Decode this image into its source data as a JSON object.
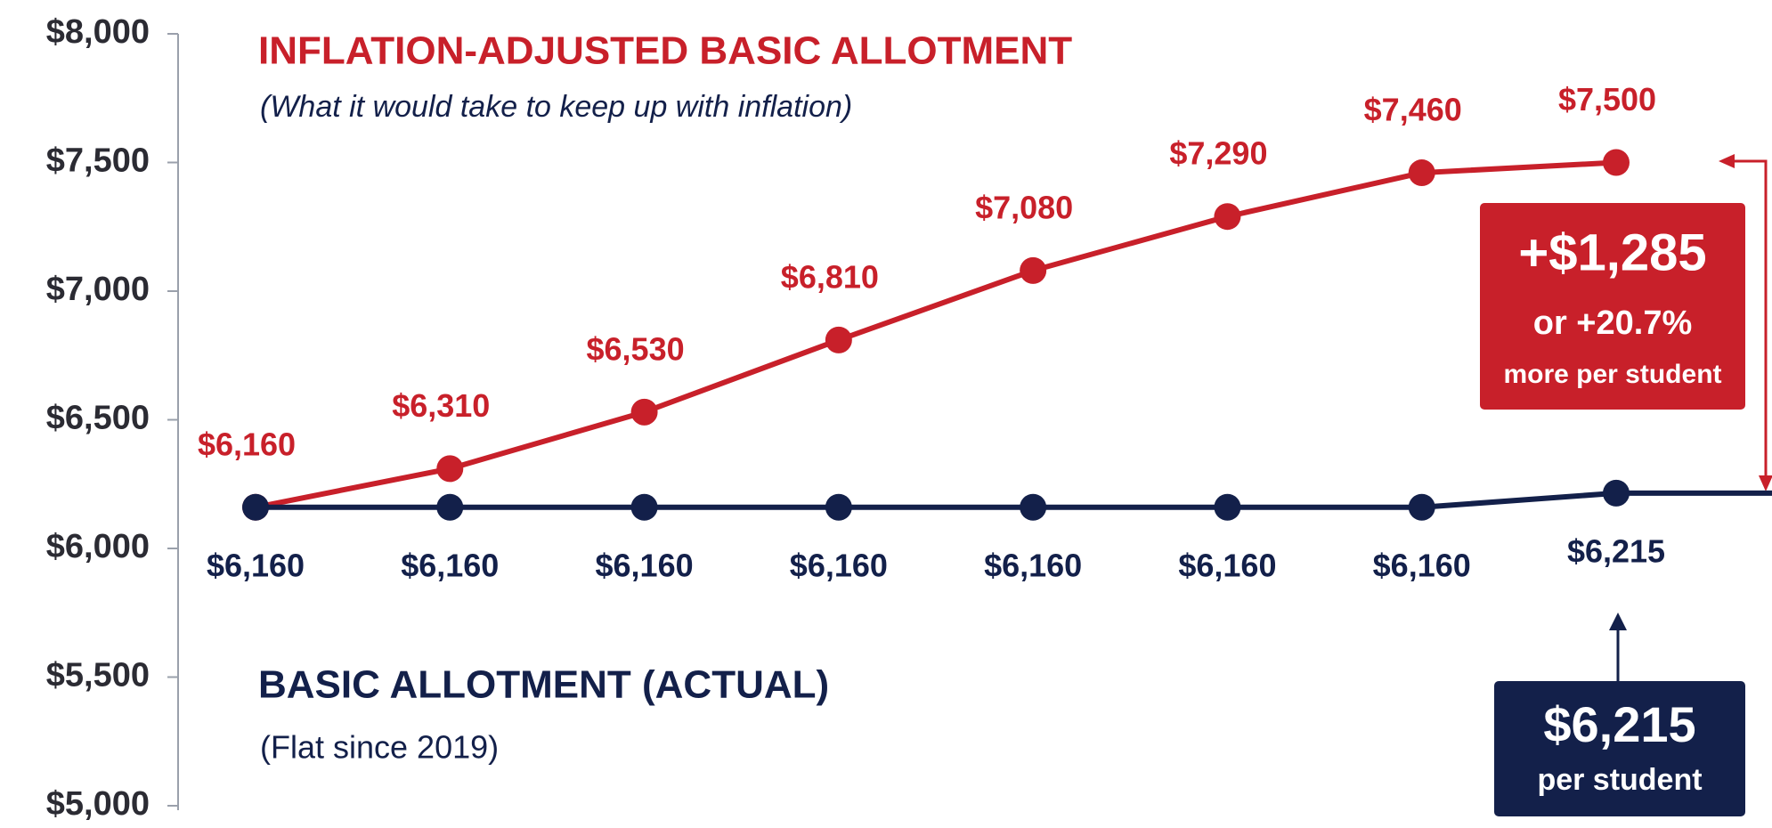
{
  "chart_data": {
    "type": "line",
    "categories": [
      null,
      null,
      null,
      null,
      null,
      null,
      null,
      null
    ],
    "series": [
      {
        "name": "INFLATION-ADJUSTED BASIC ALLOTMENT",
        "subtitle": "(What it would take to keep up with inflation)",
        "color": "#c8202a",
        "values": [
          6160,
          6310,
          6530,
          6810,
          7080,
          7290,
          7460,
          7500
        ],
        "value_labels": [
          "$6,160",
          "$6,310",
          "$6,530",
          "$6,810",
          "$7,080",
          "$7,290",
          "$7,460",
          "$7,500"
        ]
      },
      {
        "name": "BASIC ALLOTMENT (ACTUAL)",
        "subtitle": "(Flat since 2019)",
        "color": "#13204a",
        "values": [
          6160,
          6160,
          6160,
          6160,
          6160,
          6160,
          6160,
          6215
        ],
        "value_labels": [
          "$6,160",
          "$6,160",
          "$6,160",
          "$6,160",
          "$6,160",
          "$6,160",
          "$6,160",
          "$6,215"
        ]
      }
    ],
    "ylim": [
      5000,
      8000
    ],
    "yticks": [
      {
        "value": 5000,
        "label": "$5,000"
      },
      {
        "value": 5500,
        "label": "$5,500"
      },
      {
        "value": 6000,
        "label": "$6,000"
      },
      {
        "value": 6500,
        "label": "$6,500"
      },
      {
        "value": 7000,
        "label": "$7,000"
      },
      {
        "value": 7500,
        "label": "$7,500"
      },
      {
        "value": 8000,
        "label": "$8,000"
      }
    ],
    "annotations": [
      {
        "lines": [
          "+$1,285",
          "or +20.7%",
          "more per student"
        ],
        "color": "#c8202a"
      },
      {
        "lines": [
          "$6,215",
          "per student"
        ],
        "color": "#13204a"
      }
    ]
  }
}
